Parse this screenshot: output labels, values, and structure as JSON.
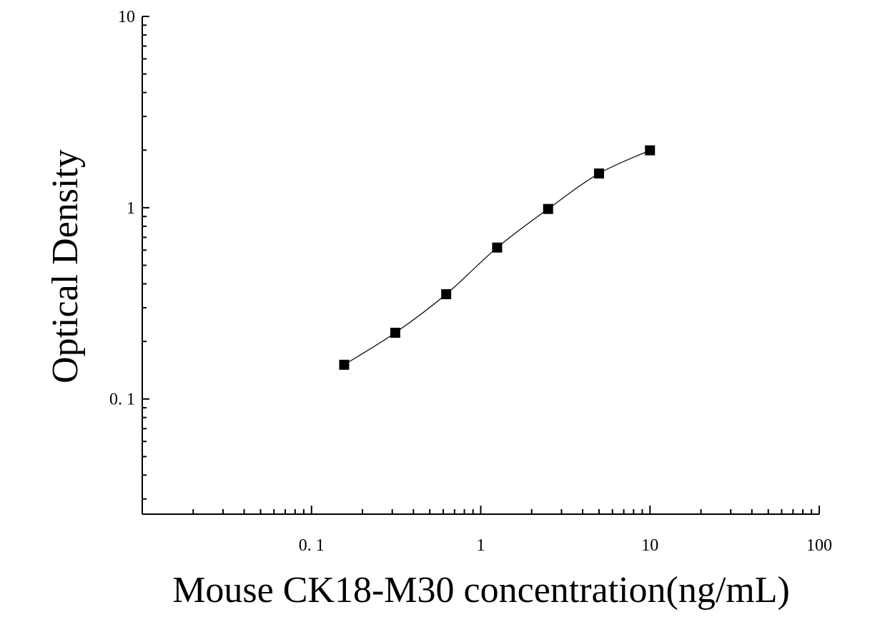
{
  "chart_data": {
    "type": "scatter",
    "title": "",
    "xlabel": "Mouse CK18-M30 concentration(ng/mL)",
    "ylabel": "Optical Density",
    "x_scale": "log",
    "y_scale": "log",
    "xlim": [
      0.01,
      100
    ],
    "ylim": [
      0.025,
      10
    ],
    "x_tick_values": [
      0.1,
      1,
      10,
      100
    ],
    "x_tick_labels": [
      "0. 1",
      "1",
      "10",
      "100"
    ],
    "y_tick_values": [
      0.1,
      1,
      10
    ],
    "y_tick_labels": [
      "0. 1",
      "1",
      "10"
    ],
    "grid": false,
    "legend": "none",
    "marker": "square",
    "marker_color": "#000000",
    "curve_color": "#000000",
    "series": [
      {
        "x": [
          0.156,
          0.3125,
          0.625,
          1.25,
          2.5,
          5,
          10
        ],
        "y": [
          0.151,
          0.222,
          0.353,
          0.619,
          0.985,
          1.51,
          1.995
        ]
      }
    ]
  }
}
